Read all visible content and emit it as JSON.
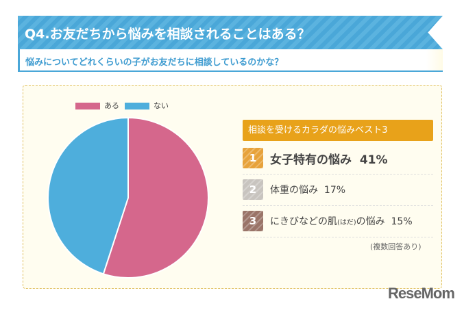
{
  "title": "Q4.お友だちから悩みを相談されることはある？",
  "subtitle": "悩みについてどれくらいの子がお友だちに相談しているのかな？",
  "chart_data": {
    "type": "pie",
    "series": [
      {
        "name": "ある",
        "value": 55,
        "color": "#d5678c"
      },
      {
        "name": "ない",
        "value": 45,
        "color": "#4eaedc"
      }
    ],
    "legend_position": "top"
  },
  "ranking": {
    "title": "相談を受けるカラダの悩みベスト3",
    "items": [
      {
        "rank": "1",
        "label": "女子特有の悩み",
        "extra": "",
        "suffix": "",
        "pct": "41%",
        "color": "#e7a23a"
      },
      {
        "rank": "2",
        "label": "体重の悩み",
        "extra": "",
        "suffix": "",
        "pct": "17%",
        "color": "#c8c4bf"
      },
      {
        "rank": "3",
        "label": "にきびなどの肌",
        "extra": "(はだ)",
        "suffix": "の悩み",
        "pct": "15%",
        "color": "#9a7468"
      }
    ],
    "note": "(複数回答あり)"
  },
  "logo": "ReseMom"
}
